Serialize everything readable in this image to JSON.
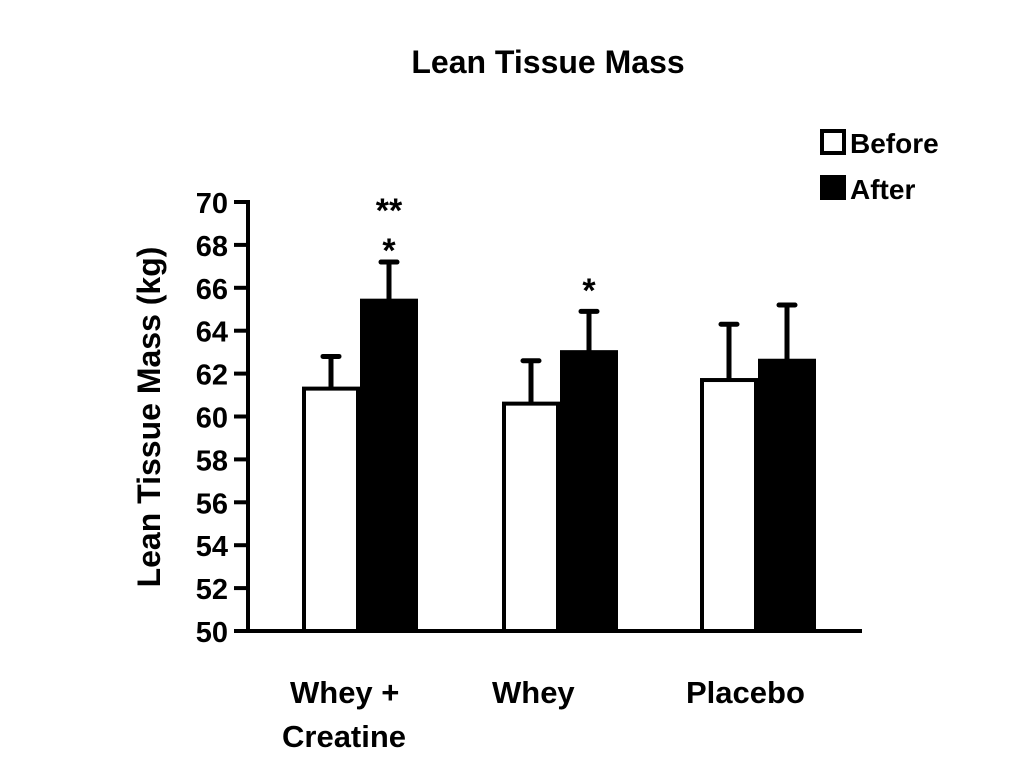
{
  "chart_data": {
    "type": "bar",
    "title": "Lean Tissue Mass",
    "xlabel": "",
    "ylabel": "Lean Tissue Mass (kg)",
    "ylim": [
      50,
      70
    ],
    "yticks": [
      "50",
      "52",
      "54",
      "56",
      "58",
      "60",
      "62",
      "64",
      "66",
      "68",
      "70"
    ],
    "categories": [
      [
        "Whey +",
        "Creatine"
      ],
      [
        "Whey"
      ],
      [
        "Placebo"
      ]
    ],
    "series": [
      {
        "name": "Before",
        "color": "#ffffff",
        "values": [
          61.3,
          60.6,
          61.7
        ],
        "error_upper": [
          62.8,
          62.6,
          64.3
        ]
      },
      {
        "name": "After",
        "color": "#000000",
        "values": [
          65.4,
          63.0,
          62.6
        ],
        "error_upper": [
          67.2,
          64.9,
          65.2
        ]
      }
    ],
    "annotations": [
      {
        "category": 0,
        "series": "After",
        "lines": [
          "**",
          "*"
        ]
      },
      {
        "category": 1,
        "series": "After",
        "lines": [
          "*"
        ]
      }
    ],
    "legend": {
      "position": "top-right",
      "labels": [
        "Before",
        "After"
      ]
    },
    "grid": false
  }
}
